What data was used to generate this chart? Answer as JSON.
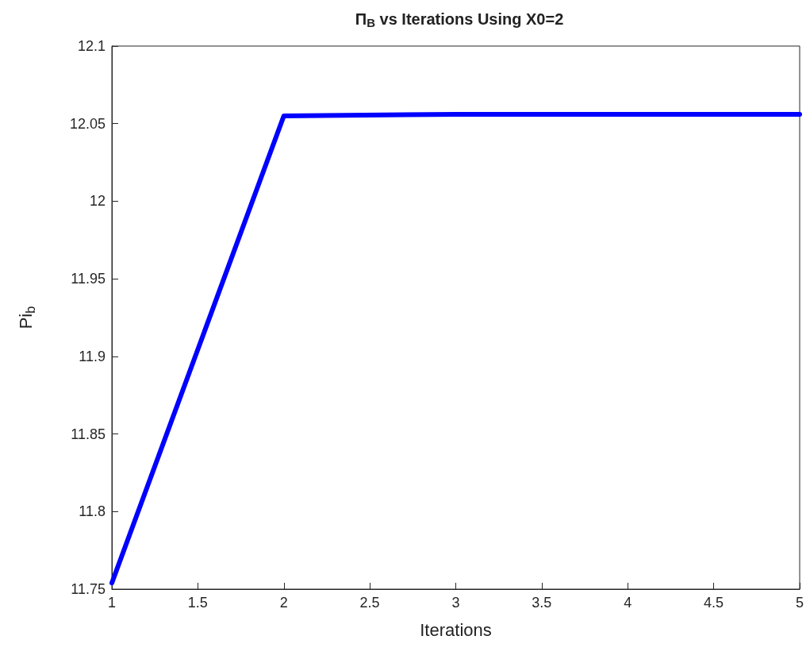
{
  "chart_data": {
    "type": "line",
    "title": "Π$_{B}$ vs Iterations Using X0=2",
    "xlabel": "Iterations",
    "ylabel": "Pi$_{b}$",
    "x": [
      1,
      2,
      3,
      4,
      5
    ],
    "series": [
      {
        "color": "#0000ff",
        "values": [
          11.754,
          12.055,
          12.056,
          12.056,
          12.056
        ]
      }
    ],
    "xlim": [
      1,
      5
    ],
    "xticks": [
      1,
      1.5,
      2,
      2.5,
      3,
      3.5,
      4,
      4.5,
      5
    ],
    "ylim": [
      11.75,
      12.1
    ],
    "yticks": [
      11.75,
      11.8,
      11.85,
      11.9,
      11.95,
      12,
      12.05,
      12.1
    ],
    "grid": false,
    "marker": "none",
    "line_style": "solid"
  }
}
